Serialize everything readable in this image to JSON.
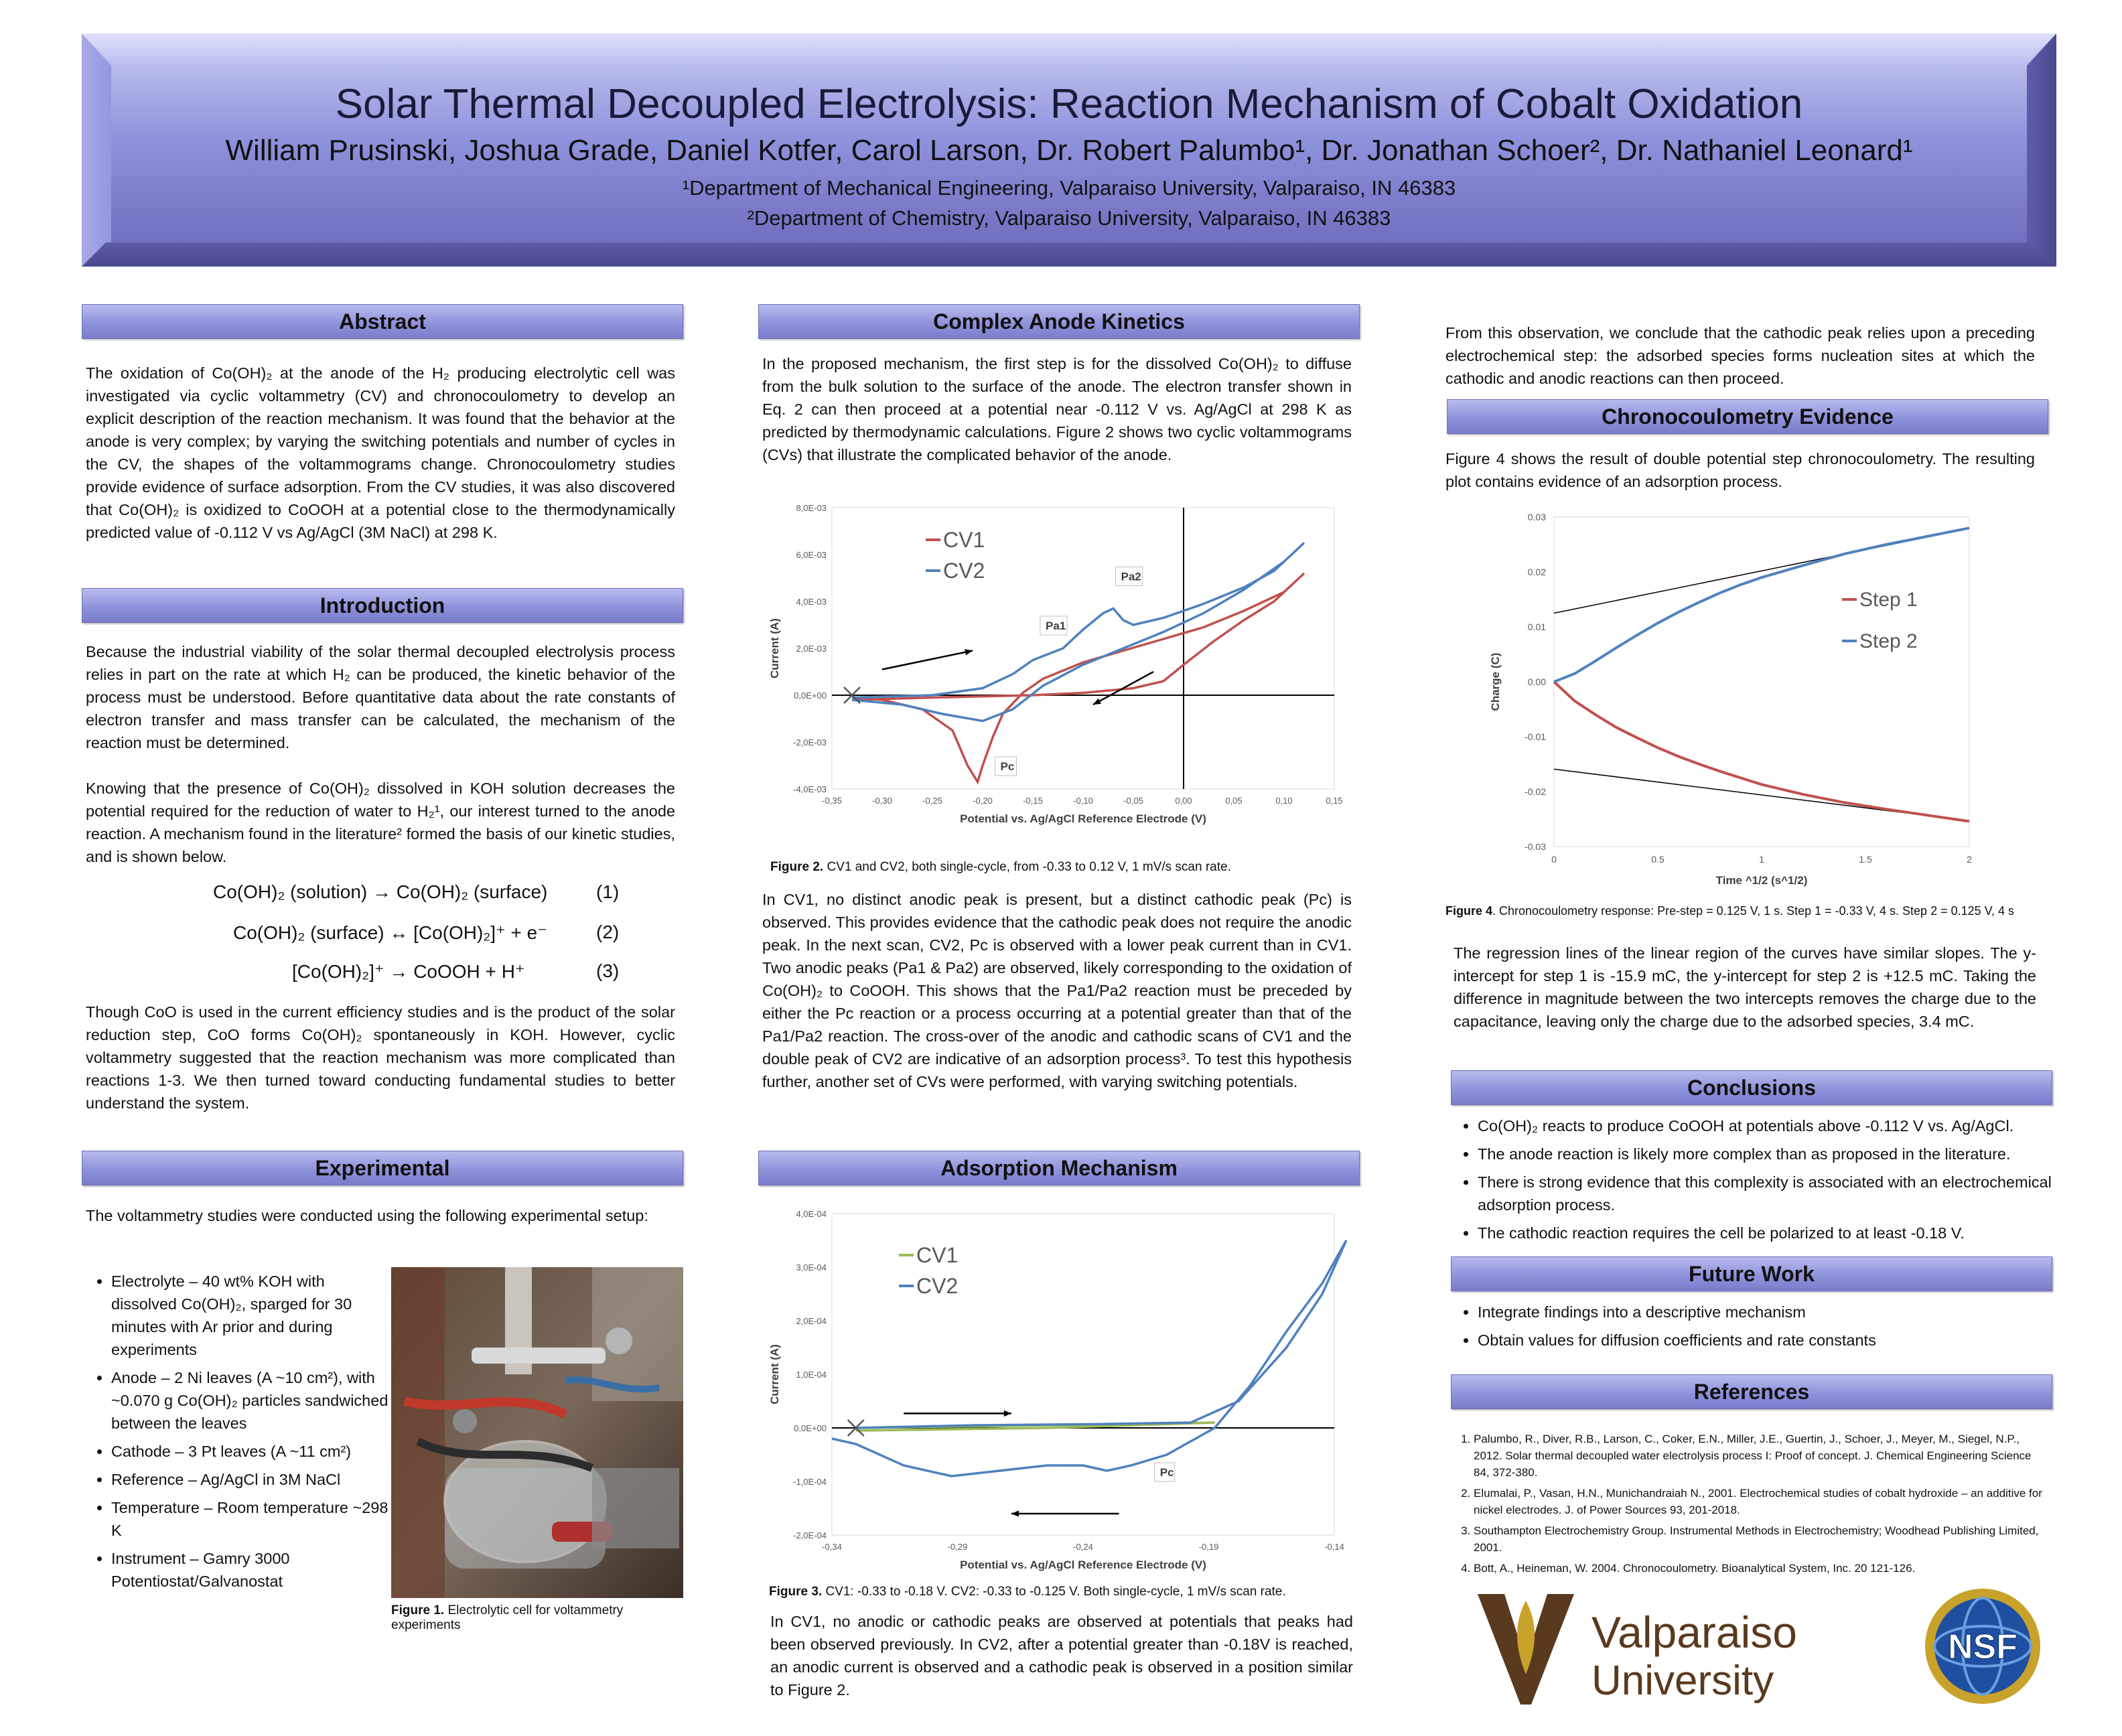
{
  "header": {
    "title": "Solar Thermal Decoupled Electrolysis: Reaction Mechanism of Cobalt Oxidation",
    "authors": "William Prusinski, Joshua Grade, Daniel Kotfer, Carol Larson, Dr. Robert Palumbo¹, Dr. Jonathan Schoer², Dr. Nathaniel Leonard¹",
    "dept1": "¹Department of Mechanical Engineering, Valparaiso University, Valparaiso, IN 46383",
    "dept2": "²Department of Chemistry, Valparaiso University, Valparaiso, IN 46383"
  },
  "sections": {
    "abstract": "Abstract",
    "introduction": "Introduction",
    "experimental": "Experimental",
    "complex": "Complex Anode Kinetics",
    "adsorption": "Adsorption Mechanism",
    "chrono": "Chronocoulometry Evidence",
    "conclusions": "Conclusions",
    "future": "Future Work",
    "references": "References"
  },
  "abstract_text": "The oxidation of Co(OH)₂ at the anode of the H₂ producing electrolytic cell was investigated via cyclic voltammetry (CV) and chronocoulometry to develop an explicit description of the reaction mechanism. It was found that the behavior at the anode is very complex; by varying the switching potentials and number of cycles in the CV, the shapes of the voltammograms change. Chronocoulometry studies provide evidence of surface adsorption. From the CV studies, it was also discovered that Co(OH)₂ is oxidized to CoOOH at a potential close to the thermodynamically predicted value of -0.112 V vs Ag/AgCl (3M NaCl) at 298 K.",
  "intro_p1": "Because the  industrial viability of the solar thermal decoupled electrolysis process relies in part on the rate at which H₂ can be produced, the kinetic behavior of the process must be understood. Before quantitative data about the rate constants of electron transfer and mass transfer can be calculated, the mechanism of the reaction must be determined.",
  "intro_p2": "Knowing that the presence of Co(OH)₂ dissolved in KOH solution decreases the potential required for the reduction of water to H₂¹, our interest turned to the anode reaction. A mechanism found in the literature² formed the basis of our kinetic studies, and is shown below.",
  "equations": [
    {
      "expr": "Co(OH)₂ (solution) → Co(OH)₂ (surface)",
      "num": "(1)"
    },
    {
      "expr": "Co(OH)₂ (surface) ↔   [Co(OH)₂]⁺ + e⁻",
      "num": "(2)"
    },
    {
      "expr": "[Co(OH)₂]⁺ → CoOOH + H⁺",
      "num": "(3)"
    }
  ],
  "intro_p3": "Though CoO is used in the current efficiency studies and is the product of the solar reduction step, CoO forms Co(OH)₂ spontaneously in KOH. However, cyclic voltammetry suggested that the reaction mechanism was more complicated than reactions 1-3. We then turned toward conducting fundamental studies to better understand the system.",
  "exp_intro": "The voltammetry studies were conducted using the following experimental setup:",
  "exp_items": [
    "Electrolyte – 40 wt% KOH with dissolved Co(OH)₂, sparged for 30 minutes with Ar prior and during experiments",
    "Anode – 2 Ni leaves (A ~10 cm²), with   ~0.070 g Co(OH)₂ particles sandwiched  between the leaves",
    "Cathode – 3 Pt leaves (A ~11 cm²)",
    "Reference – Ag/AgCl in 3M NaCl",
    "Temperature – Room temperature ~298 K",
    "Instrument – Gamry 3000 Potentiostat/Galvanostat"
  ],
  "fig1_caption_bold": "Figure 1.",
  "fig1_caption": " Electrolytic cell for voltammetry experiments",
  "complex_text": "In the proposed mechanism, the first step is for the dissolved Co(OH)₂ to diffuse from the bulk solution to the surface of the anode. The electron transfer shown in Eq. 2 can then proceed at a potential near  -0.112 V vs. Ag/AgCl at 298 K as predicted by thermodynamic calculations. Figure 2 shows two cyclic voltammograms (CVs) that illustrate the complicated behavior of the anode.",
  "fig2_caption_bold": "Figure 2.",
  "fig2_caption": "  CV1 and CV2, both single-cycle, from -0.33 to 0.12 V, 1 mV/s scan rate.",
  "complex_text2": "In CV1, no distinct anodic peak is present, but a distinct cathodic peak (Pc) is observed. This provides evidence that the cathodic peak does not require the anodic peak. In the next scan, CV2, Pc is observed with a lower peak current than in CV1. Two anodic peaks (Pa1 & Pa2) are observed, likely corresponding to the oxidation of Co(OH)₂ to CoOOH. This shows that the Pa1/Pa2 reaction must be preceded by either the Pc reaction or a process occurring at a potential greater than that of the Pa1/Pa2 reaction. The cross-over of the anodic and cathodic scans of CV1 and the double peak of CV2 are indicative of an adsorption process³. To test this hypothesis further, another set of CVs were performed, with varying switching potentials.",
  "fig3_caption_bold": "Figure 3.",
  "fig3_caption": "  CV1: -0.33 to -0.18 V. CV2: -0.33 to -0.125 V.  Both single-cycle, 1 mV/s scan rate.",
  "adsorption_text": "In CV1, no anodic or cathodic peaks are observed at potentials that peaks had been observed previously. In CV2, after a potential greater than -0.18V is reached, an anodic current is observed and a cathodic peak is observed in a position similar to Figure 2.",
  "col3_top": "From this observation, we conclude that the cathodic peak relies upon a preceding electrochemical step: the adsorbed species forms nucleation sites at which the cathodic  and anodic reactions can then proceed.",
  "chrono_text": "Figure 4 shows the result of double potential step chronocoulometry. The resulting plot contains evidence of an adsorption process.",
  "fig4_caption_bold": "Figure 4",
  "fig4_caption": ". Chronocoulometry response: Pre-step = 0.125 V, 1 s. Step 1 = -0.33 V, 4 s. Step 2 = 0.125 V, 4 s",
  "chrono_text2": "The regression lines of the linear region of the curves have similar slopes. The y-intercept for step 1 is -15.9 mC, the y-intercept for step 2 is +12.5 mC. Taking the difference in magnitude between the two intercepts removes the charge due to the capacitance, leaving only the charge due to the adsorbed species, 3.4 mC.",
  "conclusions": [
    "Co(OH)₂ reacts to produce CoOOH at potentials above -0.112 V vs. Ag/AgCl.",
    "The anode reaction is likely more complex than as proposed in the literature.",
    "There is strong evidence  that this complexity is associated with an electrochemical adsorption process.",
    "The cathodic reaction requires the cell be polarized to at least -0.18 V."
  ],
  "future": [
    "Integrate findings into a descriptive mechanism",
    "Obtain values for diffusion coefficients and rate constants"
  ],
  "references": [
    "Palumbo, R., Diver, R.B., Larson, C., Coker, E.N., Miller, J.E., Guertin, J., Schoer, J., Meyer, M., Siegel, N.P., 2012.  Solar thermal decoupled water electrolysis process I:  Proof of concept.  J. Chemical Engineering Science 84, 372-380.",
    "Elumalai, P., Vasan, H.N., Munichandraiah N., 2001. Electrochemical studies of cobalt hydroxide – an additive for nickel electrodes. J. of Power Sources 93, 201-2018.",
    "Southampton Electrochemistry Group. Instrumental Methods in Electrochemistry; Woodhead Publishing Limited, 2001.",
    "Bott, A., Heineman, W. 2004. Chronocoulometry. Bioanalytical System, Inc. 20 121-126."
  ],
  "logos": {
    "valpo_line1": "Valparaiso",
    "valpo_line2": "University",
    "nsf": "NSF",
    "valpo_color": "#5a3a1e",
    "gold": "#c9a22b"
  },
  "chart_data": [
    {
      "id": "fig2",
      "type": "line",
      "xlabel": "Potential vs. Ag/AgCl Reference Electrode (V)",
      "ylabel": "Current (A)",
      "xlim": [
        -0.35,
        0.15
      ],
      "ylim": [
        -0.004,
        0.008
      ],
      "x_ticks": [
        "-0,35",
        "-0,30",
        "-0,25",
        "-0,20",
        "-0,15",
        "-0,10",
        "-0,05",
        "0,00",
        "0,05",
        "0,10",
        "0,15"
      ],
      "y_ticks": [
        "8,0E-03",
        "6,0E-03",
        "4,0E-03",
        "2,0E-03",
        "0,0E+00",
        "-2,0E-03",
        "-4,0E-03"
      ],
      "annotations": [
        "Pa2",
        "Pa1",
        "Pc"
      ],
      "series": [
        {
          "name": "CV1",
          "color": "#c0504d",
          "forward": [
            [
              -0.33,
              -0.0002
            ],
            [
              -0.25,
              -0.0001
            ],
            [
              -0.15,
              0.0
            ],
            [
              -0.1,
              0.0001
            ],
            [
              -0.05,
              0.0003
            ],
            [
              -0.02,
              0.0006
            ],
            [
              0.0,
              0.0013
            ],
            [
              0.03,
              0.0023
            ],
            [
              0.06,
              0.0032
            ],
            [
              0.09,
              0.004
            ],
            [
              0.12,
              0.0052
            ]
          ],
          "reverse": [
            [
              0.12,
              0.0052
            ],
            [
              0.1,
              0.0044
            ],
            [
              0.06,
              0.0036
            ],
            [
              0.02,
              0.0029
            ],
            [
              -0.02,
              0.0024
            ],
            [
              -0.06,
              0.0019
            ],
            [
              -0.1,
              0.0014
            ],
            [
              -0.14,
              0.0007
            ],
            [
              -0.16,
              0.0001
            ],
            [
              -0.18,
              -0.0008
            ],
            [
              -0.19,
              -0.0018
            ],
            [
              -0.2,
              -0.003
            ],
            [
              -0.205,
              -0.0037
            ],
            [
              -0.215,
              -0.003
            ],
            [
              -0.23,
              -0.0015
            ],
            [
              -0.26,
              -0.0006
            ],
            [
              -0.3,
              -0.0002
            ],
            [
              -0.33,
              -0.0001
            ]
          ]
        },
        {
          "name": "CV2",
          "color": "#4f81bd",
          "forward": [
            [
              -0.33,
              -0.0001
            ],
            [
              -0.25,
              0.0
            ],
            [
              -0.2,
              0.0003
            ],
            [
              -0.17,
              0.0009
            ],
            [
              -0.15,
              0.0015
            ],
            [
              -0.12,
              0.002
            ],
            [
              -0.1,
              0.0028
            ],
            [
              -0.08,
              0.0035
            ],
            [
              -0.07,
              0.0037
            ],
            [
              -0.06,
              0.0032
            ],
            [
              -0.05,
              0.003
            ],
            [
              -0.02,
              0.0033
            ],
            [
              0.02,
              0.0039
            ],
            [
              0.06,
              0.0046
            ],
            [
              0.09,
              0.0053
            ],
            [
              0.12,
              0.0065
            ]
          ],
          "reverse": [
            [
              0.12,
              0.0065
            ],
            [
              0.1,
              0.0057
            ],
            [
              0.06,
              0.0045
            ],
            [
              0.02,
              0.0035
            ],
            [
              -0.02,
              0.0027
            ],
            [
              -0.06,
              0.002
            ],
            [
              -0.1,
              0.0013
            ],
            [
              -0.14,
              0.0004
            ],
            [
              -0.17,
              -0.0006
            ],
            [
              -0.2,
              -0.0011
            ],
            [
              -0.24,
              -0.0008
            ],
            [
              -0.28,
              -0.0004
            ],
            [
              -0.33,
              -0.0002
            ]
          ]
        }
      ]
    },
    {
      "id": "fig3",
      "type": "line",
      "xlabel": "Potential vs. Ag/AgCl Reference Electrode (V)",
      "ylabel": "Current (A)",
      "xlim": [
        -0.34,
        -0.13
      ],
      "ylim": [
        -0.0002,
        0.0004
      ],
      "x_ticks": [
        "-0,34",
        "-0,29",
        "-0,24",
        "-0,19",
        "-0,14"
      ],
      "y_ticks": [
        "4,0E-04",
        "3,0E-04",
        "2,0E-04",
        "1,0E-04",
        "0,0E+00",
        "-1,0E-04",
        "-2,0E-04"
      ],
      "annotations": [
        "Pc"
      ],
      "series": [
        {
          "name": "CV1",
          "color": "#9bbb59",
          "forward": [
            [
              -0.33,
              0.0
            ],
            [
              -0.25,
              5e-06
            ],
            [
              -0.18,
              1e-05
            ]
          ],
          "reverse": [
            [
              -0.18,
              1e-05
            ],
            [
              -0.25,
              0.0
            ],
            [
              -0.33,
              -5e-06
            ]
          ]
        },
        {
          "name": "CV2",
          "color": "#4f81bd",
          "forward": [
            [
              -0.33,
              0.0
            ],
            [
              -0.28,
              5e-06
            ],
            [
              -0.23,
              7e-06
            ],
            [
              -0.19,
              1e-05
            ],
            [
              -0.17,
              5e-05
            ],
            [
              -0.15,
              0.00015
            ],
            [
              -0.135,
              0.00025
            ],
            [
              -0.125,
              0.00035
            ]
          ],
          "reverse": [
            [
              -0.125,
              0.00035
            ],
            [
              -0.135,
              0.00027
            ],
            [
              -0.15,
              0.00018
            ],
            [
              -0.165,
              8e-05
            ],
            [
              -0.18,
              0.0
            ],
            [
              -0.2,
              -5e-05
            ],
            [
              -0.215,
              -7e-05
            ],
            [
              -0.225,
              -8e-05
            ],
            [
              -0.235,
              -7e-05
            ],
            [
              -0.25,
              -7e-05
            ],
            [
              -0.27,
              -8e-05
            ],
            [
              -0.29,
              -9e-05
            ],
            [
              -0.31,
              -7e-05
            ],
            [
              -0.33,
              -3e-05
            ],
            [
              -0.34,
              -2e-05
            ]
          ]
        }
      ]
    },
    {
      "id": "fig4",
      "type": "line",
      "xlabel": "Time ^1/2 (s^1/2)",
      "ylabel": "Charge (C)",
      "xlim": [
        0,
        2
      ],
      "ylim": [
        -0.03,
        0.03
      ],
      "x_ticks": [
        "0",
        "0.5",
        "1",
        "1.5",
        "2"
      ],
      "y_ticks": [
        "0.03",
        "0.02",
        "0.01",
        "0.00",
        "-0.01",
        "-0.02",
        "-0.03"
      ],
      "series": [
        {
          "name": "Step 1",
          "color": "#c0504d",
          "points": [
            [
              0,
              0.0
            ],
            [
              0.1,
              -0.0035
            ],
            [
              0.2,
              -0.006
            ],
            [
              0.3,
              -0.0083
            ],
            [
              0.4,
              -0.0102
            ],
            [
              0.5,
              -0.012
            ],
            [
              0.6,
              -0.0136
            ],
            [
              0.7,
              -0.015
            ],
            [
              0.8,
              -0.0163
            ],
            [
              0.9,
              -0.0175
            ],
            [
              1.0,
              -0.0187
            ],
            [
              1.2,
              -0.0205
            ],
            [
              1.4,
              -0.022
            ],
            [
              1.6,
              -0.0232
            ],
            [
              1.8,
              -0.0243
            ],
            [
              2.0,
              -0.0254
            ]
          ]
        },
        {
          "name": "Step 2",
          "color": "#4f81bd",
          "points": [
            [
              0,
              0.0
            ],
            [
              0.1,
              0.0015
            ],
            [
              0.2,
              0.0038
            ],
            [
              0.3,
              0.0062
            ],
            [
              0.4,
              0.0085
            ],
            [
              0.5,
              0.0107
            ],
            [
              0.6,
              0.0127
            ],
            [
              0.7,
              0.0145
            ],
            [
              0.8,
              0.0162
            ],
            [
              0.9,
              0.0177
            ],
            [
              1.0,
              0.019
            ],
            [
              1.2,
              0.0212
            ],
            [
              1.4,
              0.0233
            ],
            [
              1.6,
              0.025
            ],
            [
              1.8,
              0.0265
            ],
            [
              2.0,
              0.028
            ]
          ]
        }
      ],
      "regression": [
        {
          "intercept": 0.0125,
          "slope": 0.0077
        },
        {
          "intercept": -0.0159,
          "slope": -0.0047
        }
      ]
    }
  ]
}
